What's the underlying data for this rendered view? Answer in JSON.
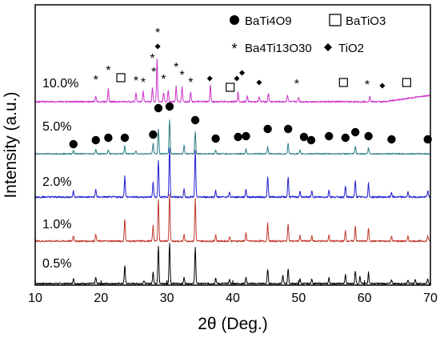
{
  "chart_data": {
    "type": "line",
    "xlabel": "2θ (Deg.)",
    "ylabel": "Intensity (a.u.)",
    "xlim": [
      10,
      70
    ],
    "xticks": [
      "10",
      "20",
      "30",
      "40",
      "50",
      "60",
      "70"
    ],
    "yticks_shown": false,
    "series": [
      {
        "name": "0.5%",
        "color": "#000000",
        "peaks": [
          [
            15.8,
            0.12
          ],
          [
            19.2,
            0.15
          ],
          [
            23.6,
            0.45
          ],
          [
            26.5,
            0.08
          ],
          [
            27.9,
            0.3
          ],
          [
            28.7,
            0.95
          ],
          [
            30.4,
            1.0
          ],
          [
            32.6,
            0.15
          ],
          [
            34.3,
            0.92
          ],
          [
            37.4,
            0.14
          ],
          [
            39.5,
            0.1
          ],
          [
            42.0,
            0.16
          ],
          [
            45.3,
            0.36
          ],
          [
            47.6,
            0.2
          ],
          [
            48.4,
            0.36
          ],
          [
            50.2,
            0.12
          ],
          [
            52.0,
            0.12
          ],
          [
            54.6,
            0.14
          ],
          [
            57.1,
            0.22
          ],
          [
            58.6,
            0.32
          ],
          [
            59.3,
            0.18
          ],
          [
            60.6,
            0.28
          ],
          [
            64.1,
            0.1
          ],
          [
            66.6,
            0.1
          ],
          [
            67.7,
            0.1
          ],
          [
            69.6,
            0.12
          ]
        ]
      },
      {
        "name": "1.0%",
        "color": "#c0392b",
        "peaks": [
          [
            15.8,
            0.12
          ],
          [
            19.2,
            0.15
          ],
          [
            23.6,
            0.48
          ],
          [
            27.9,
            0.35
          ],
          [
            28.7,
            0.9
          ],
          [
            30.4,
            1.0
          ],
          [
            32.6,
            0.15
          ],
          [
            34.3,
            0.92
          ],
          [
            37.4,
            0.14
          ],
          [
            39.5,
            0.1
          ],
          [
            42.0,
            0.18
          ],
          [
            45.3,
            0.38
          ],
          [
            48.4,
            0.38
          ],
          [
            50.2,
            0.12
          ],
          [
            52.0,
            0.12
          ],
          [
            54.6,
            0.14
          ],
          [
            57.1,
            0.22
          ],
          [
            58.6,
            0.32
          ],
          [
            60.6,
            0.28
          ],
          [
            64.1,
            0.1
          ],
          [
            66.6,
            0.1
          ],
          [
            69.6,
            0.12
          ]
        ]
      },
      {
        "name": "2.0%",
        "color": "#1f1fd0",
        "peaks": [
          [
            15.8,
            0.12
          ],
          [
            19.2,
            0.15
          ],
          [
            23.6,
            0.42
          ],
          [
            27.9,
            0.3
          ],
          [
            28.7,
            0.75
          ],
          [
            30.4,
            1.0
          ],
          [
            32.6,
            0.15
          ],
          [
            34.3,
            0.95
          ],
          [
            37.4,
            0.14
          ],
          [
            39.5,
            0.1
          ],
          [
            42.0,
            0.16
          ],
          [
            45.3,
            0.4
          ],
          [
            48.4,
            0.4
          ],
          [
            50.2,
            0.12
          ],
          [
            52.0,
            0.12
          ],
          [
            54.6,
            0.14
          ],
          [
            57.1,
            0.22
          ],
          [
            58.6,
            0.32
          ],
          [
            60.6,
            0.28
          ],
          [
            64.1,
            0.1
          ],
          [
            66.6,
            0.1
          ],
          [
            69.6,
            0.12
          ]
        ]
      },
      {
        "name": "5.0%",
        "color": "#2a7d83",
        "peaks": [
          [
            15.8,
            0.1
          ],
          [
            19.2,
            0.12
          ],
          [
            21.1,
            0.12
          ],
          [
            23.6,
            0.25
          ],
          [
            25.3,
            0.1
          ],
          [
            27.9,
            0.3
          ],
          [
            28.7,
            0.75
          ],
          [
            30.4,
            1.0
          ],
          [
            32.6,
            0.25
          ],
          [
            34.3,
            0.65
          ],
          [
            37.4,
            0.12
          ],
          [
            42.0,
            0.14
          ],
          [
            45.3,
            0.2
          ],
          [
            48.4,
            0.3
          ],
          [
            50.2,
            0.1
          ],
          [
            58.6,
            0.22
          ],
          [
            60.6,
            0.18
          ]
        ]
      },
      {
        "name": "10.0%",
        "color": "#cc33cc",
        "peaks": [
          [
            19.2,
            0.12
          ],
          [
            21.1,
            0.3
          ],
          [
            25.3,
            0.2
          ],
          [
            26.4,
            0.22
          ],
          [
            27.8,
            0.3
          ],
          [
            28.5,
            0.92
          ],
          [
            29.5,
            0.2
          ],
          [
            30.2,
            0.25
          ],
          [
            31.4,
            0.33
          ],
          [
            32.3,
            0.32
          ],
          [
            33.6,
            0.22
          ],
          [
            36.6,
            0.35
          ],
          [
            40.8,
            0.2
          ],
          [
            42.2,
            0.13
          ],
          [
            44.0,
            0.12
          ],
          [
            45.4,
            0.18
          ],
          [
            48.3,
            0.15
          ],
          [
            50.0,
            0.1
          ],
          [
            60.8,
            0.12
          ]
        ]
      }
    ],
    "legend": [
      {
        "symbol": "●",
        "label": "BaTi4O9"
      },
      {
        "symbol": "□",
        "label": "BaTiO3"
      },
      {
        "symbol": "*",
        "label": "Ba4Ti13O30"
      },
      {
        "symbol": "◆",
        "label": "TiO2"
      }
    ],
    "markers": {
      "circle": [
        15.8,
        19.2,
        21.1,
        23.6,
        27.9,
        28.7,
        30.4,
        34.3,
        37.4,
        40.8,
        42.0,
        45.3,
        48.4,
        50.8,
        51.9,
        54.6,
        57.1,
        58.6,
        60.6,
        64.1,
        69.6
      ],
      "square": [
        23.0,
        39.6,
        56.8,
        66.4
      ],
      "star": [
        19.2,
        21.1,
        25.3,
        26.4,
        27.8,
        28.0,
        28.6,
        29.5,
        31.4,
        32.3,
        33.6,
        49.7,
        60.4
      ],
      "diamond": [
        28.6,
        36.5,
        40.6,
        41.4,
        44.0,
        62.7
      ]
    }
  }
}
